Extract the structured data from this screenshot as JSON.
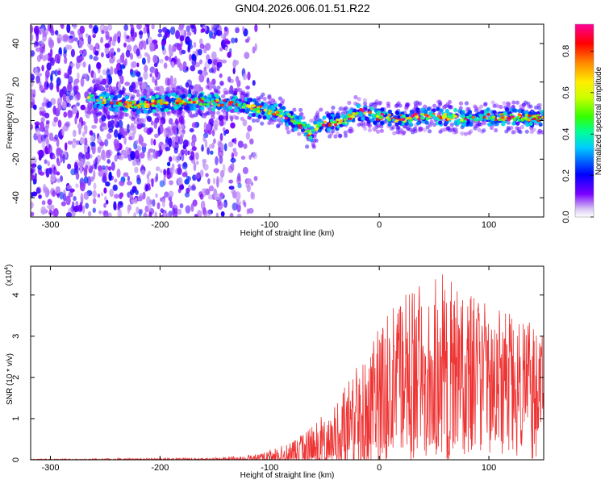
{
  "title": "GN04.2026.006.01.51.R22",
  "chart_data": [
    {
      "type": "heatmap",
      "xlabel": "Height of straight line (km)",
      "ylabel": "Frequency (Hz)",
      "xlim": [
        -318,
        150
      ],
      "ylim": [
        -50,
        50
      ],
      "xticks": [
        -300,
        -200,
        -100,
        0,
        100
      ],
      "xtick_labels": [
        "-300",
        "-200",
        "-100",
        "0",
        "100"
      ],
      "yticks": [
        -40,
        -20,
        0,
        20,
        40
      ],
      "ytick_labels": [
        "-40",
        "-20",
        "0",
        "20",
        "40"
      ],
      "colorbar": {
        "label": "Normalized spectral amplitude",
        "range": [
          0,
          0.93
        ],
        "ticks": [
          0.0,
          0.2,
          0.4,
          0.6,
          0.8
        ],
        "tick_labels": [
          "0.0",
          "0.2",
          "0.4",
          "0.6",
          "0.8"
        ]
      },
      "ridge": {
        "x": [
          -265,
          -240,
          -220,
          -200,
          -180,
          -160,
          -140,
          -125,
          -110,
          -100,
          -90,
          -80,
          -70,
          -62,
          -55,
          -45,
          -30,
          -20,
          -10,
          0,
          20,
          40,
          60,
          80,
          100,
          120,
          150
        ],
        "y": [
          12,
          9,
          8,
          9,
          10,
          10,
          9,
          8,
          6,
          5,
          4,
          1,
          -3,
          -8,
          -2,
          -1,
          0,
          5,
          3,
          2,
          1,
          2,
          2,
          1,
          2,
          2,
          1
        ]
      },
      "noise_region_x": [
        -318,
        -112
      ]
    },
    {
      "type": "line",
      "xlabel": "Height of straight line (km)",
      "ylabel": "SNR (10 * v/v)",
      "multiplier_label": "(x10",
      "multiplier_exp": "4",
      "multiplier_close": ")",
      "color": "#ee3333",
      "xlim": [
        -318,
        150
      ],
      "ylim": [
        0,
        4.7
      ],
      "xticks": [
        -300,
        -200,
        -100,
        0,
        100
      ],
      "xtick_labels": [
        "-300",
        "-200",
        "-100",
        "0",
        "100"
      ],
      "yticks": [
        0,
        1,
        2,
        3,
        4
      ],
      "ytick_labels": [
        "0",
        "1",
        "2",
        "3",
        "4"
      ],
      "envelope": {
        "x": [
          -318,
          -150,
          -110,
          -80,
          -60,
          -40,
          -20,
          0,
          20,
          40,
          60,
          80,
          100,
          120,
          150
        ],
        "mean": [
          0.0,
          0.01,
          0.03,
          0.1,
          0.25,
          0.45,
          0.9,
          1.4,
          1.8,
          2.0,
          2.1,
          2.1,
          2.0,
          1.95,
          1.9
        ],
        "peak": [
          0.02,
          0.05,
          0.15,
          0.45,
          0.9,
          1.4,
          2.4,
          3.4,
          4.0,
          4.3,
          4.6,
          4.3,
          3.8,
          3.6,
          3.4
        ]
      }
    }
  ]
}
